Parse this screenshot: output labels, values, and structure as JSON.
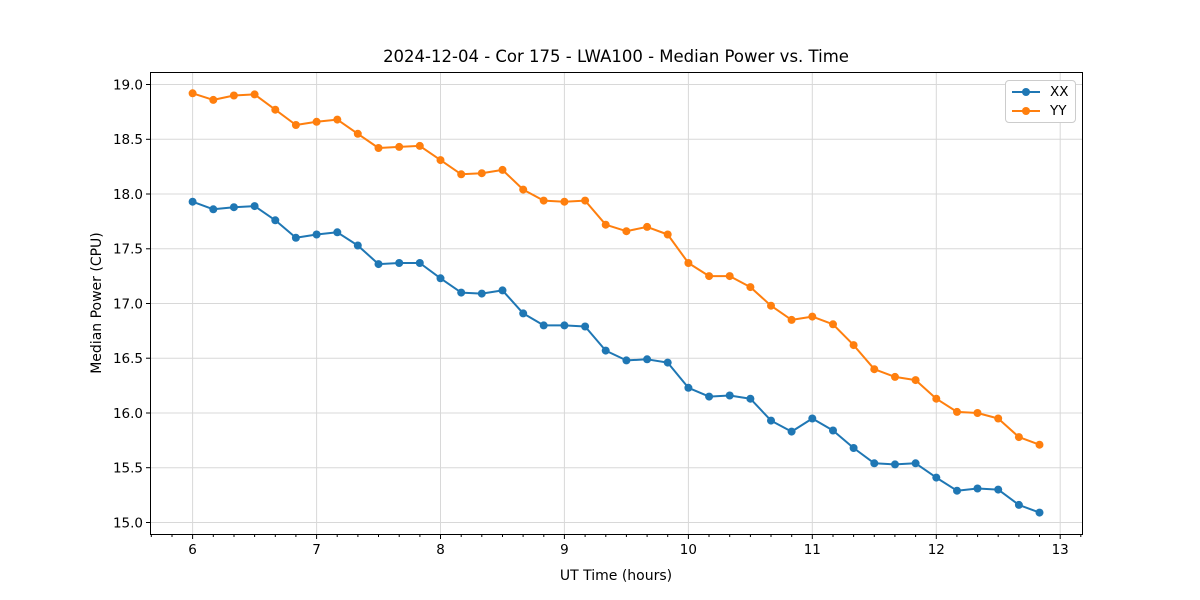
{
  "chart_data": {
    "type": "line",
    "title": "2024-12-04 - Cor 175 - LWA100 - Median Power vs. Time",
    "xlabel": "UT Time (hours)",
    "ylabel": "Median Power (CPU)",
    "x": [
      6.0,
      6.167,
      6.333,
      6.5,
      6.667,
      6.833,
      7.0,
      7.167,
      7.333,
      7.5,
      7.667,
      7.833,
      8.0,
      8.167,
      8.333,
      8.5,
      8.667,
      8.833,
      9.0,
      9.167,
      9.333,
      9.5,
      9.667,
      9.833,
      10.0,
      10.167,
      10.333,
      10.5,
      10.667,
      10.833,
      11.0,
      11.167,
      11.333,
      11.5,
      11.667,
      11.833,
      12.0,
      12.167,
      12.333,
      12.5,
      12.667,
      12.833
    ],
    "series": [
      {
        "name": "XX",
        "color": "#1f77b4",
        "values": [
          17.93,
          17.86,
          17.88,
          17.89,
          17.76,
          17.6,
          17.63,
          17.65,
          17.53,
          17.36,
          17.37,
          17.37,
          17.23,
          17.1,
          17.09,
          17.12,
          16.91,
          16.8,
          16.8,
          16.79,
          16.57,
          16.48,
          16.49,
          16.46,
          16.23,
          16.15,
          16.16,
          16.13,
          15.93,
          15.83,
          15.95,
          15.84,
          15.68,
          15.54,
          15.53,
          15.54,
          15.41,
          15.29,
          15.31,
          15.3,
          15.16,
          15.09
        ]
      },
      {
        "name": "YY",
        "color": "#ff7f0e",
        "values": [
          18.92,
          18.86,
          18.9,
          18.91,
          18.77,
          18.63,
          18.66,
          18.68,
          18.55,
          18.42,
          18.43,
          18.44,
          18.31,
          18.18,
          18.19,
          18.22,
          18.04,
          17.94,
          17.93,
          17.94,
          17.72,
          17.66,
          17.7,
          17.63,
          17.37,
          17.25,
          17.25,
          17.15,
          16.98,
          16.85,
          16.88,
          16.81,
          16.62,
          16.4,
          16.33,
          16.3,
          16.13,
          16.01,
          16.0,
          15.95,
          15.78,
          15.71
        ]
      }
    ],
    "xlim": [
      5.66,
      13.18
    ],
    "ylim": [
      14.89,
      19.11
    ],
    "xticks": [
      6,
      7,
      8,
      9,
      10,
      11,
      12,
      13
    ],
    "xtick_labels": [
      "6",
      "7",
      "8",
      "9",
      "10",
      "11",
      "12",
      "13"
    ],
    "yticks": [
      15.0,
      15.5,
      16.0,
      16.5,
      17.0,
      17.5,
      18.0,
      18.5,
      19.0
    ],
    "ytick_labels": [
      "15.0",
      "15.5",
      "16.0",
      "16.5",
      "17.0",
      "17.5",
      "18.0",
      "18.5",
      "19.0"
    ],
    "x_minor_tick_step": 0.1666667,
    "grid": true,
    "legend_position": "upper right",
    "marker": "circle"
  },
  "colors": {
    "background": "#ffffff",
    "grid": "#d8d8d8",
    "axis": "#000000",
    "series_xx": "#1f77b4",
    "series_yy": "#ff7f0e",
    "legend_border": "#cccccc"
  }
}
